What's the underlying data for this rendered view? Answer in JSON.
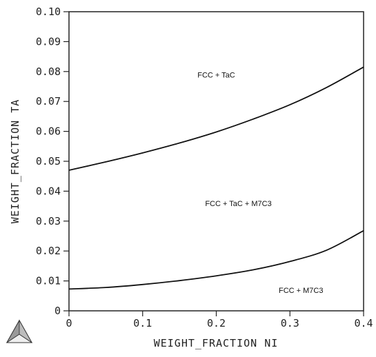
{
  "chart_data": {
    "type": "line",
    "xlabel": "WEIGHT_FRACTION NI",
    "ylabel": "WEIGHT_FRACTION TA",
    "xlim": [
      0,
      0.4
    ],
    "ylim": [
      0,
      0.1
    ],
    "x_ticks": [
      0,
      0.1,
      0.2,
      0.3,
      0.4
    ],
    "x_tick_labels": [
      "0",
      "0.1",
      "0.2",
      "0.3",
      "0.4"
    ],
    "y_ticks": [
      0,
      0.01,
      0.02,
      0.03,
      0.04,
      0.05,
      0.06,
      0.07,
      0.08,
      0.09,
      0.1
    ],
    "y_tick_labels": [
      "0",
      "0.01",
      "0.02",
      "0.03",
      "0.04",
      "0.05",
      "0.06",
      "0.07",
      "0.08",
      "0.09",
      "0.10"
    ],
    "grid": false,
    "legend": "none",
    "line_color": "#111111",
    "series": [
      {
        "x": [
          0,
          0.05,
          0.1,
          0.15,
          0.2,
          0.25,
          0.3,
          0.35,
          0.4
        ],
        "y": [
          0.047,
          0.0498,
          0.0528,
          0.0561,
          0.0598,
          0.0641,
          0.0689,
          0.0747,
          0.0815
        ]
      },
      {
        "x": [
          0,
          0.05,
          0.1,
          0.15,
          0.2,
          0.25,
          0.3,
          0.35,
          0.4
        ],
        "y": [
          0.0073,
          0.0078,
          0.0088,
          0.0101,
          0.0117,
          0.0137,
          0.0165,
          0.0203,
          0.0268
        ]
      }
    ],
    "annotations": [
      {
        "text": "FCC + TaC",
        "x": 0.2,
        "y": 0.078
      },
      {
        "text": "FCC + TaC + M7C3",
        "x": 0.23,
        "y": 0.035
      },
      {
        "text": "FCC + M7C3",
        "x": 0.315,
        "y": 0.006
      }
    ]
  }
}
